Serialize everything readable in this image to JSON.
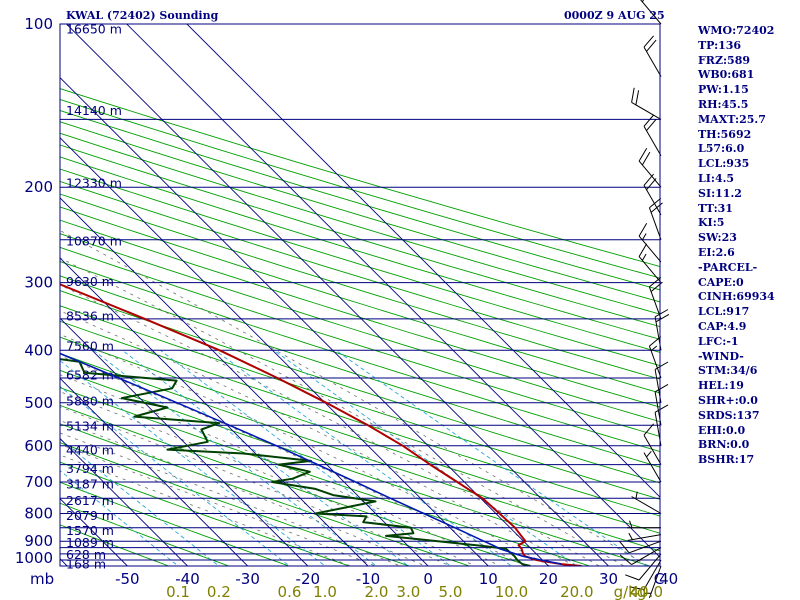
{
  "header": {
    "station_title": "KWAL (72402) Sounding",
    "valid_time": "0000Z  9 AUG 25"
  },
  "indices": [
    "WMO:72402",
    "TP:136",
    "FRZ:589",
    "WB0:681",
    "PW:1.15",
    "RH:45.5",
    "MAXT:25.7",
    "TH:5692",
    "L57:6.0",
    "LCL:935",
    "LI:4.5",
    "SI:11.2",
    "TT:31",
    "KI:5",
    "SW:23",
    "EI:2.6",
    "-PARCEL-",
    "CAPE:0",
    "CINH:69934",
    "LCL:917",
    "CAP:4.9",
    "LFC:-1",
    "-WIND-",
    "STM:34/6",
    "HEL:19",
    "SHR+:0.0",
    "SRDS:137",
    "EHI:0.0",
    "BRN:0.0",
    "BSHR:17"
  ],
  "colors": {
    "isobar": "#000080",
    "isotherm": "#000080",
    "dry_adiabat": "#00a000",
    "saturation_mixing_ratio": "#2aa8d8",
    "moist_adiabat": "#707070",
    "temperature": "#b00000",
    "dewpoint": "#004000",
    "parcel": "#0018b0",
    "wind_barb": "#000000",
    "label": "#000080",
    "mixing_ratio_label": "#808000"
  },
  "chart_data": {
    "type": "line",
    "diagram": "skew-T log-P",
    "pressure_unit_label": "mb",
    "x_unit_label": "C",
    "mixing_ratio_unit_label": "g/kg",
    "pressure_range": [
      1000,
      100
    ],
    "temperature_range": [
      -50,
      50
    ],
    "pressure_levels": [
      100,
      200,
      300,
      400,
      500,
      600,
      700,
      800,
      900,
      1000
    ],
    "temperature_ticks": [
      -50,
      -40,
      -30,
      -20,
      -10,
      0,
      10,
      20,
      30,
      40
    ],
    "mixing_ratio_ticks": [
      "0.1",
      "0.2",
      "0.6",
      "1.0",
      "2.0",
      "3.0",
      "5.0",
      "10.0",
      "20.0",
      "40.0"
    ],
    "heights": [
      {
        "p": 102,
        "label": "16650 m"
      },
      {
        "p": 144,
        "label": "14140 m"
      },
      {
        "p": 196,
        "label": "12330 m"
      },
      {
        "p": 251,
        "label": "10870 m"
      },
      {
        "p": 298,
        "label": "9630 m"
      },
      {
        "p": 345,
        "label": "8536 m"
      },
      {
        "p": 392,
        "label": "7560 m"
      },
      {
        "p": 443,
        "label": "6582 m"
      },
      {
        "p": 495,
        "label": "5880 m"
      },
      {
        "p": 550,
        "label": "5134 m"
      },
      {
        "p": 610,
        "label": "4440 m"
      },
      {
        "p": 660,
        "label": "3794 m"
      },
      {
        "p": 705,
        "label": "3187 m"
      },
      {
        "p": 755,
        "label": "2617 m"
      },
      {
        "p": 806,
        "label": "2079 m"
      },
      {
        "p": 859,
        "label": "1570 m"
      },
      {
        "p": 903,
        "label": "1089 m"
      },
      {
        "p": 950,
        "label": "628 m"
      },
      {
        "p": 990,
        "label": "168 m"
      }
    ],
    "series": [
      {
        "key": "temperature",
        "points": [
          [
            1000,
            25.5
          ],
          [
            992,
            22.5
          ],
          [
            975,
            19.0
          ],
          [
            960,
            17.8
          ],
          [
            950,
            17.8
          ],
          [
            930,
            18.4
          ],
          [
            915,
            18.5
          ],
          [
            900,
            20.3
          ],
          [
            850,
            20.8
          ],
          [
            800,
            20.6
          ],
          [
            750,
            20.3
          ],
          [
            700,
            18.8
          ],
          [
            650,
            17.2
          ],
          [
            600,
            15.8
          ],
          [
            550,
            13.4
          ],
          [
            500,
            10.2
          ],
          [
            450,
            6.2
          ],
          [
            400,
            1.2
          ],
          [
            350,
            -6.0
          ],
          [
            300,
            -14.8
          ],
          [
            250,
            -25.4
          ],
          [
            220,
            -33.5
          ],
          [
            200,
            -39.2
          ],
          [
            175,
            -44.5
          ],
          [
            150,
            -44.4
          ],
          [
            125,
            -44.6
          ],
          [
            110,
            -44.9
          ],
          [
            100,
            -44.7
          ]
        ]
      },
      {
        "key": "dewpoint",
        "points": [
          [
            1000,
            17.0
          ],
          [
            992,
            16.0
          ],
          [
            975,
            15.8
          ],
          [
            960,
            16.0
          ],
          [
            930,
            15.8
          ],
          [
            920,
            13.0
          ],
          [
            900,
            5.8
          ],
          [
            880,
            -2.0
          ],
          [
            870,
            3.0
          ],
          [
            850,
            3.5
          ],
          [
            830,
            -3.5
          ],
          [
            810,
            -2.0
          ],
          [
            800,
            -10.0
          ],
          [
            780,
            -4.0
          ],
          [
            760,
            2.0
          ],
          [
            740,
            -4.0
          ],
          [
            720,
            -6.0
          ],
          [
            700,
            -12.0
          ],
          [
            690,
            -8.0
          ],
          [
            670,
            -4.0
          ],
          [
            650,
            -8.0
          ],
          [
            640,
            -2.0
          ],
          [
            620,
            -12.0
          ],
          [
            610,
            -24.0
          ],
          [
            590,
            -16.0
          ],
          [
            560,
            -15.0
          ],
          [
            545,
            -11.0
          ],
          [
            530,
            -24.0
          ],
          [
            510,
            -17.0
          ],
          [
            490,
            -23.0
          ],
          [
            470,
            -13.0
          ],
          [
            455,
            -11.0
          ],
          [
            440,
            -25.0
          ],
          [
            420,
            -24.0
          ],
          [
            405,
            -33.0
          ],
          [
            395,
            -28.0
          ],
          [
            385,
            -34.0
          ],
          [
            370,
            -30.0
          ],
          [
            350,
            -35.0
          ],
          [
            335,
            -48.0
          ],
          [
            325,
            -40.0
          ],
          [
            300,
            -31.0
          ],
          [
            290,
            -36.0
          ],
          [
            270,
            -42.0
          ],
          [
            250,
            -46.0
          ],
          [
            230,
            -52.0
          ],
          [
            205,
            -58.0
          ],
          [
            190,
            -63.0
          ],
          [
            175,
            -66.0
          ],
          [
            160,
            -72.0
          ],
          [
            150,
            -75.0
          ],
          [
            140,
            -77.0
          ],
          [
            125,
            -80.0
          ],
          [
            110,
            -82.0
          ],
          [
            100,
            -86.0
          ]
        ]
      },
      {
        "key": "parcel",
        "points": [
          [
            992,
            22.5
          ],
          [
            960,
            17.4
          ],
          [
            930,
            14.8
          ],
          [
            917,
            14.3
          ],
          [
            900,
            13.4
          ],
          [
            850,
            10.8
          ],
          [
            800,
            8.0
          ],
          [
            750,
            5.0
          ],
          [
            700,
            1.9
          ],
          [
            650,
            -1.5
          ],
          [
            600,
            -5.2
          ],
          [
            550,
            -9.6
          ],
          [
            500,
            -14.6
          ],
          [
            450,
            -20.2
          ],
          [
            400,
            -26.6
          ],
          [
            350,
            -34.2
          ],
          [
            300,
            -43.2
          ],
          [
            250,
            -53.5
          ],
          [
            200,
            -66.2
          ],
          [
            170,
            -75.5
          ],
          [
            150,
            -82.2
          ],
          [
            130,
            -90.2
          ],
          [
            115,
            -97.2
          ]
        ]
      }
    ],
    "wind_profile": [
      {
        "p": 1000,
        "dir": 200,
        "spd": 5
      },
      {
        "p": 975,
        "dir": 210,
        "spd": 10
      },
      {
        "p": 950,
        "dir": 220,
        "spd": 10
      },
      {
        "p": 925,
        "dir": 240,
        "spd": 10
      },
      {
        "p": 900,
        "dir": 250,
        "spd": 10
      },
      {
        "p": 875,
        "dir": 260,
        "spd": 5
      },
      {
        "p": 850,
        "dir": 270,
        "spd": 5
      },
      {
        "p": 800,
        "dir": 300,
        "spd": 5
      },
      {
        "p": 700,
        "dir": 330,
        "spd": 5
      },
      {
        "p": 650,
        "dir": 330,
        "spd": 10
      },
      {
        "p": 600,
        "dir": 350,
        "spd": 10
      },
      {
        "p": 550,
        "dir": 350,
        "spd": 10
      },
      {
        "p": 500,
        "dir": 350,
        "spd": 10
      },
      {
        "p": 450,
        "dir": 340,
        "spd": 15
      },
      {
        "p": 400,
        "dir": 350,
        "spd": 20
      },
      {
        "p": 350,
        "dir": 340,
        "spd": 20
      },
      {
        "p": 300,
        "dir": 320,
        "spd": 15
      },
      {
        "p": 275,
        "dir": 320,
        "spd": 15
      },
      {
        "p": 250,
        "dir": 340,
        "spd": 20
      },
      {
        "p": 225,
        "dir": 330,
        "spd": 20
      },
      {
        "p": 200,
        "dir": 320,
        "spd": 20
      },
      {
        "p": 175,
        "dir": 330,
        "spd": 20
      },
      {
        "p": 150,
        "dir": 300,
        "spd": 20
      },
      {
        "p": 125,
        "dir": 330,
        "spd": 20
      },
      {
        "p": 100,
        "dir": 320,
        "spd": 15
      }
    ]
  }
}
